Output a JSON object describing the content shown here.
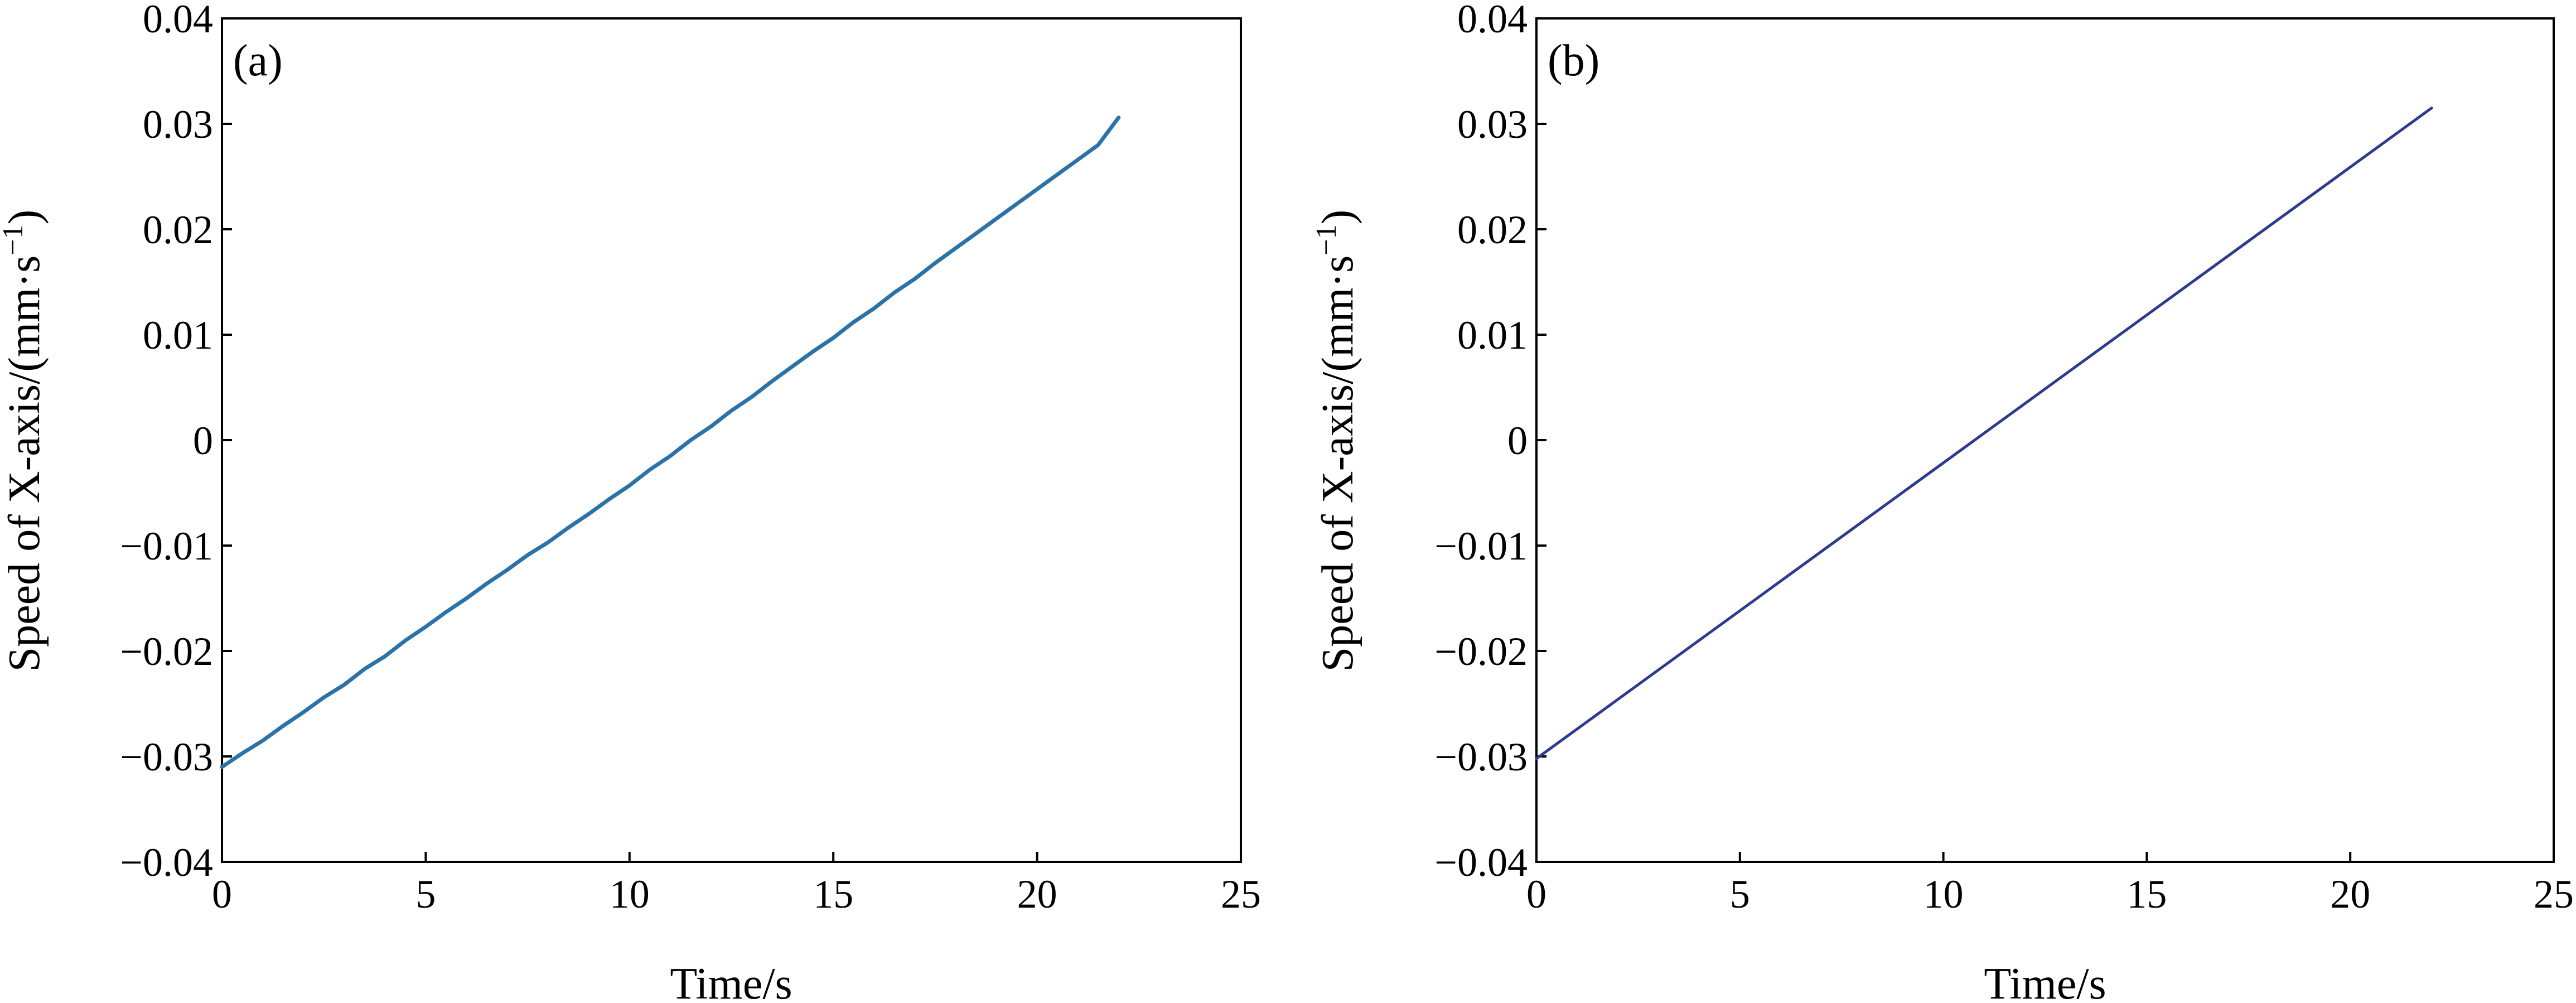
{
  "chart_data": [
    {
      "type": "line",
      "panel_label": "(a)",
      "title": "",
      "xlabel": "Time/s",
      "ylabel": "Speed of X-axis/(mm·s",
      "ylabel_sup": "−1",
      "ylabel_close": ")",
      "xlim": [
        0,
        25
      ],
      "ylim": [
        -0.04,
        0.04
      ],
      "xticks": [
        0,
        5,
        10,
        15,
        20,
        25
      ],
      "yticks": [
        -0.04,
        -0.03,
        -0.02,
        -0.01,
        0,
        0.01,
        0.02,
        0.03,
        0.04
      ],
      "xtick_labels": [
        "0",
        "5",
        "10",
        "15",
        "20",
        "25"
      ],
      "ytick_labels": [
        "−0.04",
        "−0.03",
        "−0.02",
        "−0.01",
        "0",
        "0.01",
        "0.02",
        "0.03",
        "0.04"
      ],
      "grid": false,
      "series": [
        {
          "color": "#2a72a8",
          "x": [
            0.0,
            0.5,
            1.0,
            1.5,
            2.0,
            2.5,
            3.0,
            3.5,
            4.0,
            4.5,
            5.0,
            5.5,
            6.0,
            6.5,
            7.0,
            7.5,
            8.0,
            8.5,
            9.0,
            9.5,
            10.0,
            10.5,
            11.0,
            11.5,
            12.0,
            12.5,
            13.0,
            13.5,
            14.0,
            14.5,
            15.0,
            15.5,
            16.0,
            16.5,
            17.0,
            17.5,
            18.0,
            18.5,
            19.0,
            19.5,
            20.0,
            20.5,
            21.0,
            21.5,
            22.0
          ],
          "y": [
            -0.031,
            -0.0297,
            -0.0285,
            -0.0271,
            -0.0258,
            -0.0244,
            -0.0232,
            -0.0217,
            -0.0205,
            -0.019,
            -0.0177,
            -0.0163,
            -0.015,
            -0.0136,
            -0.0123,
            -0.0109,
            -0.0097,
            -0.0083,
            -0.007,
            -0.0056,
            -0.0043,
            -0.0028,
            -0.0015,
            0.0,
            0.0013,
            0.0028,
            0.0041,
            0.0056,
            0.007,
            0.0084,
            0.0097,
            0.0112,
            0.0125,
            0.014,
            0.0153,
            0.0168,
            0.0182,
            0.0196,
            0.021,
            0.0224,
            0.0238,
            0.0252,
            0.0266,
            0.028,
            0.0306
          ]
        }
      ]
    },
    {
      "type": "line",
      "panel_label": "(b)",
      "title": "",
      "xlabel": "Time/s",
      "ylabel": "Speed of X-axis/(mm·s",
      "ylabel_sup": "−1",
      "ylabel_close": ")",
      "xlim": [
        0,
        25
      ],
      "ylim": [
        -0.04,
        0.04
      ],
      "xticks": [
        0,
        5,
        10,
        15,
        20,
        25
      ],
      "yticks": [
        -0.04,
        -0.03,
        -0.02,
        -0.01,
        0,
        0.01,
        0.02,
        0.03,
        0.04
      ],
      "xtick_labels": [
        "0",
        "5",
        "10",
        "15",
        "20",
        "25"
      ],
      "ytick_labels": [
        "−0.04",
        "−0.03",
        "−0.02",
        "−0.01",
        "0",
        "0.01",
        "0.02",
        "0.03",
        "0.04"
      ],
      "grid": false,
      "series": [
        {
          "color": "#2e3a8c",
          "x": [
            0.0,
            22.0
          ],
          "y": [
            -0.0302,
            0.0315
          ]
        }
      ]
    }
  ]
}
